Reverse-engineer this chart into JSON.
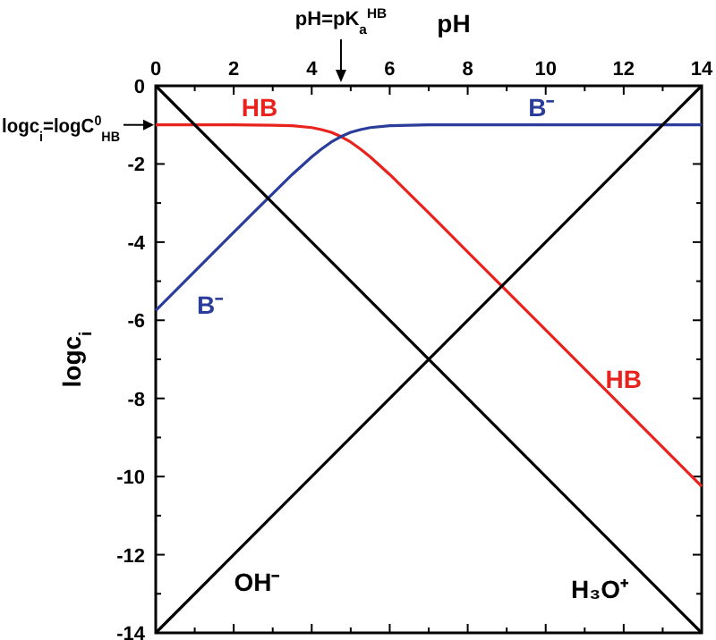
{
  "chart_data": {
    "type": "line",
    "xlabel": "pH",
    "ylabel": "logc$_{i}$",
    "xlim": [
      0,
      14
    ],
    "xticks": [
      0,
      {
        "value": 1,
        "label": null
      },
      2,
      {
        "value": 3,
        "label": null
      },
      4,
      {
        "value": 5,
        "label": null
      },
      6,
      {
        "value": 7,
        "label": null
      },
      8,
      {
        "value": 9,
        "label": null
      },
      10,
      {
        "value": 11,
        "label": null
      },
      12,
      {
        "value": 13,
        "label": null
      },
      14
    ],
    "ylim": [
      -14,
      0
    ],
    "yticks": [
      0,
      {
        "value": -1,
        "label": null
      },
      -2,
      {
        "value": -3,
        "label": null
      },
      -4,
      {
        "value": -5,
        "label": null
      },
      -6,
      {
        "value": -7,
        "label": null
      },
      -8,
      {
        "value": -9,
        "label": null
      },
      -10,
      {
        "value": -11,
        "label": null
      },
      -12,
      {
        "value": -13,
        "label": null
      },
      -14
    ],
    "grid": false,
    "marker": "none",
    "line_style": "solid",
    "series": [
      {
        "name": "HB",
        "color": "#e8221d",
        "x": [
          0,
          1,
          2,
          3,
          3.5,
          4,
          4.25,
          4.5,
          4.75,
          5,
          5.25,
          5.5,
          6,
          6.5,
          7,
          8,
          10,
          12,
          14
        ],
        "values": [
          -1,
          -1,
          -1,
          -1.01,
          -1.02,
          -1.07,
          -1.12,
          -1.19,
          -1.3,
          -1.44,
          -1.62,
          -1.82,
          -2.27,
          -2.76,
          -3.25,
          -4.25,
          -6.25,
          -8.25,
          -10.25
        ]
      },
      {
        "name": "B⁻",
        "color": "#2a3d9a",
        "x": [
          0,
          1,
          2,
          2.5,
          3,
          3.5,
          4,
          4.25,
          4.5,
          4.75,
          5,
          5.25,
          5.5,
          6,
          6.5,
          7,
          8,
          10,
          12,
          14
        ],
        "values": [
          -5.75,
          -4.75,
          -3.75,
          -3.25,
          -2.76,
          -2.27,
          -1.82,
          -1.62,
          -1.44,
          -1.3,
          -1.19,
          -1.12,
          -1.07,
          -1.02,
          -1.01,
          -1,
          -1,
          -1,
          -1,
          -1
        ]
      },
      {
        "name": "OH⁻",
        "color": "#000000",
        "x": [
          0,
          14
        ],
        "values": [
          -14,
          0
        ]
      },
      {
        "name": "H₃O⁺",
        "color": "#000000",
        "x": [
          0,
          14
        ],
        "values": [
          0,
          -14
        ]
      }
    ],
    "annotations": [
      "pH=pK$_{a}$$^{HB}$",
      "logc$_{i}$=logC$^{0}$$_{HB}$"
    ]
  }
}
